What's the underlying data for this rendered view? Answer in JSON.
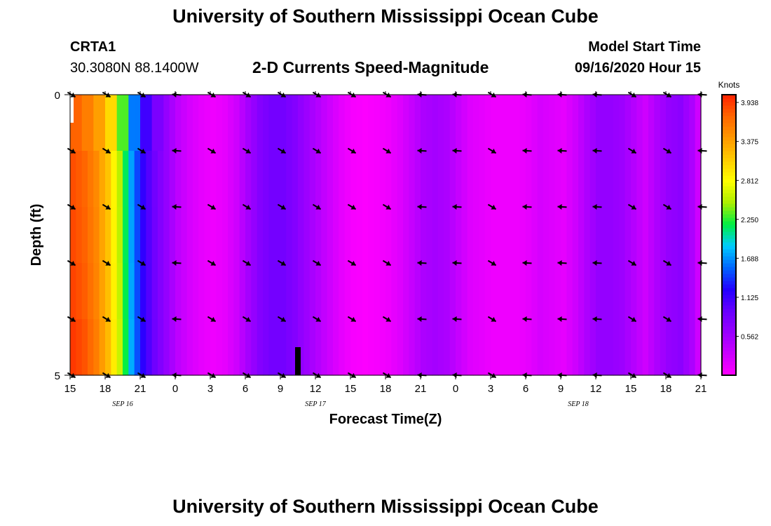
{
  "header": {
    "title": "University of Southern Mississippi Ocean Cube",
    "station": "CRTA1",
    "coordinates": "30.3080N 88.1400W",
    "chart_title": "2-D Currents Speed-Magnitude",
    "model_start_label": "Model Start Time",
    "model_start_time": "09/16/2020 Hour 15"
  },
  "footer": {
    "title": "University of Southern Mississippi Ocean Cube"
  },
  "colors": {
    "scale": [
      "#ff00ff",
      "#cc00ff",
      "#9900ff",
      "#6600ff",
      "#2200ff",
      "#0066ff",
      "#00ccff",
      "#00ee44",
      "#aaee00",
      "#ffff00",
      "#ffcc00",
      "#ff9900",
      "#ff6600",
      "#ff2200"
    ],
    "arrow": "#000000",
    "marker": "#000000"
  },
  "chart_data": {
    "type": "heatmap",
    "xlabel": "Forecast Time(Z)",
    "ylabel": "Depth (ft)",
    "x_range": [
      0,
      54
    ],
    "y_range": [
      0,
      5
    ],
    "x_ticks": [
      "15",
      "18",
      "21",
      "0",
      "3",
      "6",
      "9",
      "12",
      "15",
      "18",
      "21",
      "0",
      "3",
      "6",
      "9",
      "12",
      "15",
      "18",
      "21"
    ],
    "x_tick_hours": [
      0,
      3,
      6,
      9,
      12,
      15,
      18,
      21,
      24,
      27,
      30,
      33,
      36,
      39,
      42,
      45,
      48,
      51,
      54
    ],
    "y_ticks": [
      "0",
      "5"
    ],
    "y_tick_values": [
      0,
      5
    ],
    "date_labels": [
      {
        "label": "SEP 16",
        "hour": 4.5
      },
      {
        "label": "SEP 17",
        "hour": 21
      },
      {
        "label": "SEP 18",
        "hour": 43.5
      }
    ],
    "colorbar": {
      "title": "Knots",
      "ticks": [
        "3.938",
        "3.375",
        "2.812",
        "2.250",
        "1.688",
        "1.125",
        "0.562"
      ],
      "tick_values": [
        3.938,
        3.375,
        2.812,
        2.25,
        1.688,
        1.125,
        0.562
      ],
      "range": [
        0,
        4.05
      ]
    },
    "speed_by_hour": [
      3.75,
      3.65,
      3.45,
      3.1,
      2.5,
      1.7,
      1.15,
      0.85,
      0.65,
      0.4,
      0.25,
      0.15,
      0.1,
      0.15,
      0.3,
      0.55,
      0.75,
      0.85,
      0.85,
      0.75,
      0.6,
      0.45,
      0.3,
      0.15,
      0.05,
      0.02,
      0.05,
      0.1,
      0.2,
      0.35,
      0.5,
      0.55,
      0.5,
      0.35,
      0.2,
      0.15,
      0.1,
      0.1,
      0.1,
      0.15,
      0.25,
      0.2,
      0.15,
      0.3,
      0.5,
      0.65,
      0.65,
      0.6,
      0.45,
      0.3,
      0.5,
      0.65,
      0.7,
      0.5,
      0.1
    ],
    "surface_speed_by_hour": [
      3.7,
      3.55,
      3.35,
      3.0,
      2.3,
      1.6,
      1.1,
      0.8
    ],
    "depth_layers": [
      0,
      1,
      2,
      3,
      4,
      5
    ],
    "layer_offset": [
      0.05,
      0.1,
      0.12,
      0.15,
      0.2,
      -0.05
    ],
    "vector_hours": [
      0,
      3,
      6,
      9,
      12,
      15,
      18,
      21,
      24,
      27,
      30,
      33,
      36,
      39,
      42,
      45,
      48,
      51,
      54
    ],
    "vector_directions": [
      "SE",
      "SE",
      "SE",
      "W",
      "SE",
      "SE",
      "SE",
      "SE",
      "SE",
      "SE",
      "W",
      "W",
      "SE",
      "W",
      "W",
      "W",
      "SE",
      "SE",
      "W"
    ],
    "marker_hour": 19.5
  }
}
